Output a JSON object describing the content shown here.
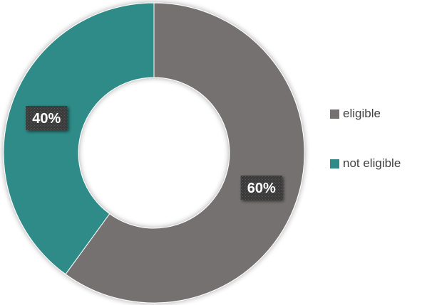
{
  "chart_data": {
    "type": "pie",
    "variant": "donut",
    "title": "",
    "categories": [
      "eligible",
      "not eligible"
    ],
    "values": [
      60,
      40
    ],
    "data_labels": [
      "60%",
      "40%"
    ],
    "colors": [
      "#767171",
      "#2e8b87"
    ],
    "legend_position": "right",
    "start_angle_deg": 0,
    "direction": "clockwise"
  },
  "legend": {
    "items": [
      {
        "label": "eligible",
        "color": "#767171"
      },
      {
        "label": "not eligible",
        "color": "#2e8b87"
      }
    ]
  }
}
